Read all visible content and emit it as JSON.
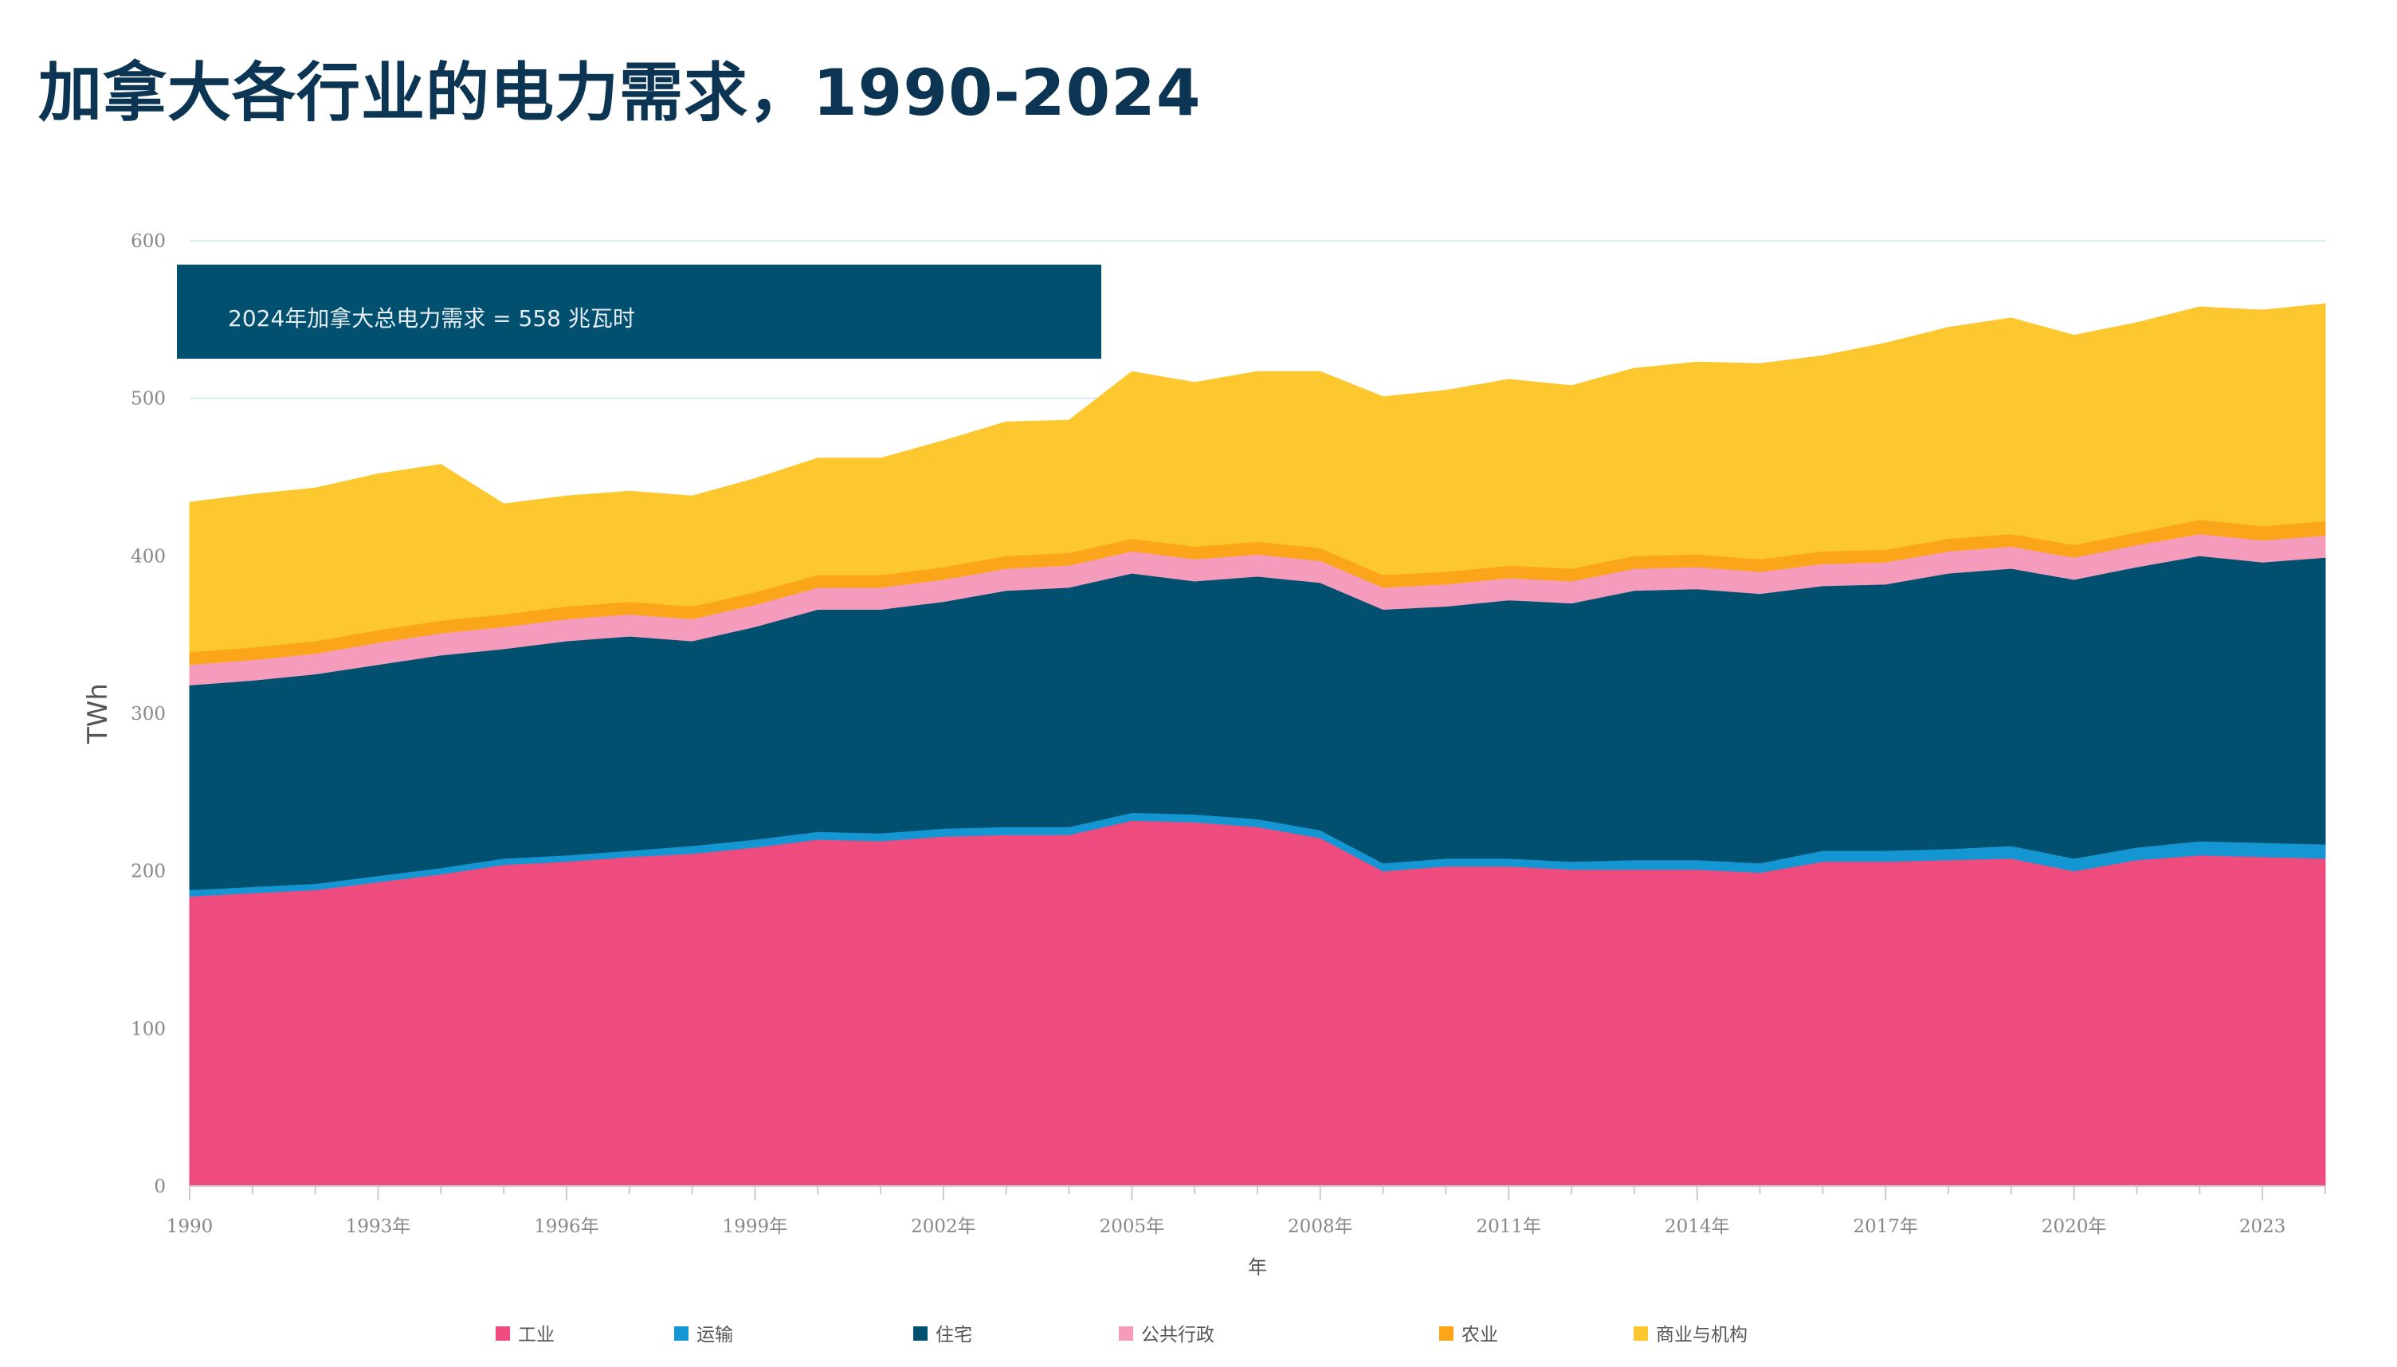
{
  "title": "加拿大各行业的电力需求，1990-2024",
  "colors": {
    "title": "#0c3553",
    "grid": "#d3eef7",
    "axis": "#cccccc",
    "annotation_bg": "#02506f",
    "annotation_text": "#e6eef3"
  },
  "annotation": "2024年加拿大总电力需求 = 558 兆瓦时",
  "chart_data": {
    "type": "area",
    "stacked": true,
    "xlabel": "年",
    "ylabel": "TWh",
    "ylim": [
      0,
      600
    ],
    "yticks": [
      0,
      100,
      200,
      300,
      400,
      500,
      600
    ],
    "xlim": [
      1990,
      2024
    ],
    "xticks": [
      {
        "value": 1990,
        "label": "1990"
      },
      {
        "value": 1993,
        "label": "1993年"
      },
      {
        "value": 1996,
        "label": "1996年"
      },
      {
        "value": 1999,
        "label": "1999年"
      },
      {
        "value": 2002,
        "label": "2002年"
      },
      {
        "value": 2005,
        "label": "2005年"
      },
      {
        "value": 2008,
        "label": "2008年"
      },
      {
        "value": 2011,
        "label": "2011年"
      },
      {
        "value": 2014,
        "label": "2014年"
      },
      {
        "value": 2017,
        "label": "2017年"
      },
      {
        "value": 2020,
        "label": "2020年"
      },
      {
        "value": 2023,
        "label": "2023"
      }
    ],
    "grid": true,
    "legend_position": "bottom",
    "x": [
      1990,
      1991,
      1992,
      1993,
      1994,
      1995,
      1996,
      1997,
      1998,
      1999,
      2000,
      2001,
      2002,
      2003,
      2004,
      2005,
      2006,
      2007,
      2008,
      2009,
      2010,
      2011,
      2012,
      2013,
      2014,
      2015,
      2016,
      2017,
      2018,
      2019,
      2020,
      2021,
      2022,
      2023,
      2024
    ],
    "series": [
      {
        "name": "工业",
        "color": "#ee4b7f",
        "values": [
          184,
          186,
          188,
          193,
          198,
          204,
          206,
          209,
          211,
          215,
          220,
          219,
          222,
          223,
          223,
          232,
          231,
          228,
          221,
          200,
          203,
          203,
          201,
          201,
          201,
          199,
          206,
          206,
          207,
          208,
          200,
          207,
          210,
          209,
          208
        ]
      },
      {
        "name": "运输",
        "color": "#1496d3",
        "values": [
          4,
          4,
          4,
          4,
          4,
          4,
          4,
          4,
          5,
          5,
          5,
          5,
          5,
          5,
          5,
          5,
          5,
          5,
          5,
          5,
          5,
          5,
          5,
          6,
          6,
          6,
          7,
          7,
          7,
          8,
          8,
          8,
          9,
          9,
          9
        ]
      },
      {
        "name": "住宅",
        "color": "#02506f",
        "values": [
          130,
          131,
          133,
          134,
          135,
          133,
          136,
          136,
          130,
          135,
          141,
          142,
          144,
          150,
          152,
          152,
          148,
          154,
          157,
          161,
          160,
          164,
          164,
          171,
          172,
          171,
          168,
          169,
          175,
          176,
          177,
          178,
          181,
          178,
          182
        ]
      },
      {
        "name": "公共行政",
        "color": "#f59bbb",
        "values": [
          13,
          13,
          13,
          14,
          14,
          14,
          14,
          14,
          14,
          14,
          14,
          14,
          14,
          14,
          14,
          14,
          14,
          14,
          14,
          14,
          14,
          14,
          14,
          14,
          14,
          14,
          14,
          14,
          14,
          14,
          14,
          14,
          14,
          14,
          14
        ]
      },
      {
        "name": "农业",
        "color": "#fba61a",
        "values": [
          8,
          8,
          8,
          8,
          8,
          8,
          8,
          8,
          8,
          8,
          8,
          8,
          8,
          8,
          8,
          8,
          8,
          8,
          8,
          8,
          8,
          8,
          8,
          8,
          8,
          8,
          8,
          8,
          8,
          8,
          8,
          8,
          9,
          9,
          9
        ]
      },
      {
        "name": "商业与机构",
        "color": "#fdc72f",
        "values": [
          95,
          97,
          97,
          99,
          99,
          70,
          70,
          70,
          70,
          72,
          74,
          74,
          80,
          85,
          84,
          106,
          104,
          108,
          112,
          113,
          115,
          118,
          116,
          119,
          122,
          124,
          124,
          131,
          134,
          137,
          133,
          133,
          135,
          137,
          138
        ]
      }
    ]
  }
}
